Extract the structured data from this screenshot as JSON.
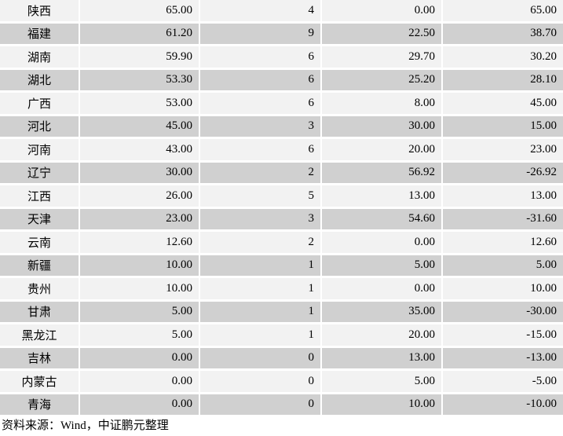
{
  "rows": [
    [
      "陕西",
      "65.00",
      "4",
      "0.00",
      "65.00"
    ],
    [
      "福建",
      "61.20",
      "9",
      "22.50",
      "38.70"
    ],
    [
      "湖南",
      "59.90",
      "6",
      "29.70",
      "30.20"
    ],
    [
      "湖北",
      "53.30",
      "6",
      "25.20",
      "28.10"
    ],
    [
      "广西",
      "53.00",
      "6",
      "8.00",
      "45.00"
    ],
    [
      "河北",
      "45.00",
      "3",
      "30.00",
      "15.00"
    ],
    [
      "河南",
      "43.00",
      "6",
      "20.00",
      "23.00"
    ],
    [
      "辽宁",
      "30.00",
      "2",
      "56.92",
      "-26.92"
    ],
    [
      "江西",
      "26.00",
      "5",
      "13.00",
      "13.00"
    ],
    [
      "天津",
      "23.00",
      "3",
      "54.60",
      "-31.60"
    ],
    [
      "云南",
      "12.60",
      "2",
      "0.00",
      "12.60"
    ],
    [
      "新疆",
      "10.00",
      "1",
      "5.00",
      "5.00"
    ],
    [
      "贵州",
      "10.00",
      "1",
      "0.00",
      "10.00"
    ],
    [
      "甘肃",
      "5.00",
      "1",
      "35.00",
      "-30.00"
    ],
    [
      "黑龙江",
      "5.00",
      "1",
      "20.00",
      "-15.00"
    ],
    [
      "吉林",
      "0.00",
      "0",
      "13.00",
      "-13.00"
    ],
    [
      "内蒙古",
      "0.00",
      "0",
      "5.00",
      "-5.00"
    ],
    [
      "青海",
      "0.00",
      "0",
      "10.00",
      "-10.00"
    ]
  ],
  "source_note": "资料来源：Wind，中证鹏元整理",
  "colors": {
    "row_light": "#f2f2f2",
    "row_dark": "#d0d0d0"
  }
}
